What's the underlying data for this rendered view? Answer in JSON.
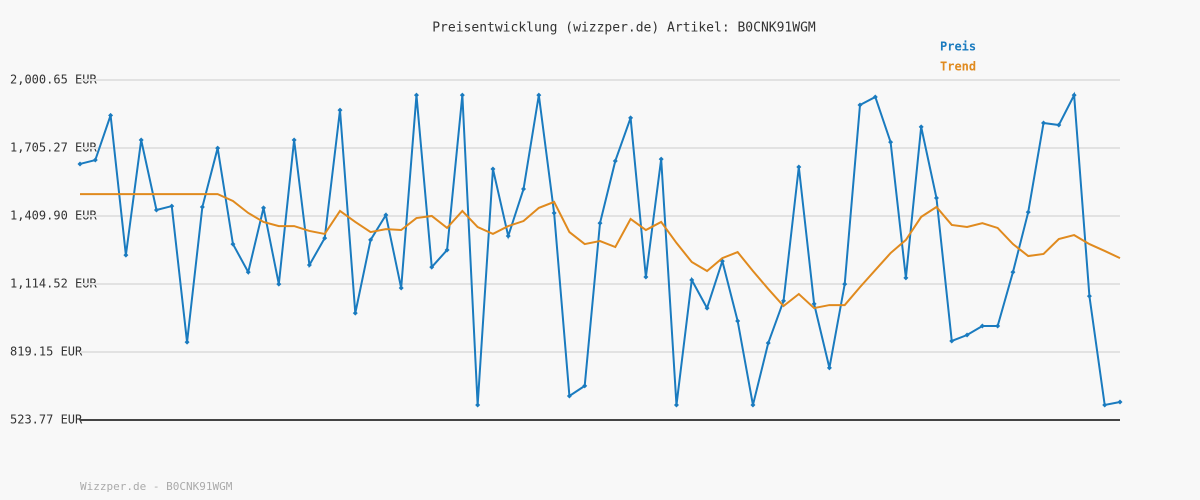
{
  "chart_data": {
    "type": "line",
    "title": "Preisentwicklung (wizzper.de) Artikel: B0CNK91WGM",
    "footer": "Wizzper.de - B0CNK91WGM",
    "ylim": [
      523.77,
      2000.65
    ],
    "yticks": [
      {
        "value": 523.77,
        "label": "523.77 EUR"
      },
      {
        "value": 819.15,
        "label": "819.15 EUR"
      },
      {
        "value": 1114.52,
        "label": "1,114.52 EUR"
      },
      {
        "value": 1409.9,
        "label": "1,409.90 EUR"
      },
      {
        "value": 1705.27,
        "label": "1,705.27 EUR"
      },
      {
        "value": 2000.65,
        "label": "2,000.65 EUR"
      }
    ],
    "grid": true,
    "legend": "top-right",
    "series": [
      {
        "name": "Preis",
        "color": "#1a7bbf",
        "markers": true,
        "values": [
          1636,
          1653,
          1847,
          1240,
          1740,
          1436,
          1453,
          862,
          1449,
          1705,
          1288,
          1166,
          1445,
          1114,
          1740,
          1197,
          1314,
          1870,
          988,
          1306,
          1414,
          1097,
          1935,
          1188,
          1262,
          1935,
          589,
          1614,
          1323,
          1527,
          1935,
          1423,
          628,
          672,
          1379,
          1649,
          1836,
          1145,
          1657,
          589,
          1132,
          1010,
          1214,
          954,
          589,
          858,
          1041,
          1623,
          1028,
          750,
          1114,
          1892,
          1927,
          1731,
          1141,
          1797,
          1488,
          867,
          893,
          932,
          932,
          1166,
          1427,
          1814,
          1805,
          1935,
          1062,
          589,
          602
        ]
      },
      {
        "name": "Trend",
        "color": "#e08a1e",
        "markers": false,
        "values": [
          1505,
          1505,
          1505,
          1505,
          1505,
          1505,
          1505,
          1505,
          1505,
          1505,
          1475,
          1423,
          1384,
          1366,
          1366,
          1345,
          1332,
          1432,
          1384,
          1340,
          1353,
          1349,
          1401,
          1410,
          1358,
          1432,
          1362,
          1332,
          1366,
          1388,
          1445,
          1471,
          1340,
          1288,
          1301,
          1275,
          1397,
          1349,
          1384,
          1293,
          1210,
          1171,
          1227,
          1253,
          1171,
          1093,
          1019,
          1071,
          1010,
          1023,
          1023,
          1101,
          1175,
          1249,
          1306,
          1406,
          1449,
          1371,
          1362,
          1379,
          1358,
          1288,
          1236,
          1245,
          1310,
          1327,
          1288,
          1258,
          1227
        ]
      }
    ]
  }
}
